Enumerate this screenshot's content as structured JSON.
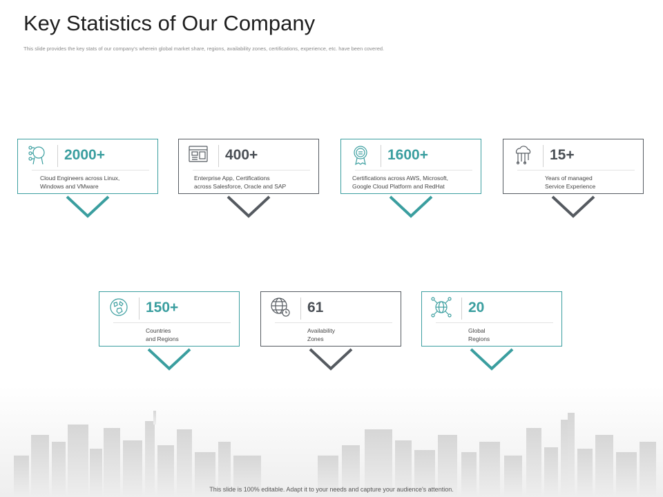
{
  "slide": {
    "title": "Key Statistics of Our Company",
    "subtitle": "This slide provides the key stats of our company's wherein global market share, regions, availability zones, certifications, experience, etc. have been covered.",
    "footer": "This slide is 100% editable. Adapt it to your needs and capture your audience's attention."
  },
  "colors": {
    "teal": "#3a9e9f",
    "gray": "#555a60"
  },
  "stats": [
    {
      "value": "2000+",
      "desc_line1": "Cloud Engineers across Linux,",
      "desc_line2": "Windows and VMware",
      "icon": "robot-head-icon",
      "accent": "teal"
    },
    {
      "value": "400+",
      "desc_line1": "Enterprise App, Certifications",
      "desc_line2": "across Salesforce, Oracle and SAP",
      "icon": "app-window-icon",
      "accent": "gray"
    },
    {
      "value": "1600+",
      "desc_line1": "Certifications across AWS, Microsoft,",
      "desc_line2": "Google Cloud Platform and RedHat",
      "icon": "certificate-badge-icon",
      "accent": "teal"
    },
    {
      "value": "15+",
      "desc_line1": "Years of managed",
      "desc_line2": "Service Experience",
      "icon": "cloud-tools-icon",
      "accent": "gray"
    },
    {
      "value": "150+",
      "desc_line1": "Countries",
      "desc_line2": "and Regions",
      "icon": "globe-map-icon",
      "accent": "teal"
    },
    {
      "value": "61",
      "desc_line1": "Availability",
      "desc_line2": "Zones",
      "icon": "globe-clock-icon",
      "accent": "gray"
    },
    {
      "value": "20",
      "desc_line1": "Global",
      "desc_line2": "Regions",
      "icon": "globe-network-icon",
      "accent": "teal"
    }
  ]
}
